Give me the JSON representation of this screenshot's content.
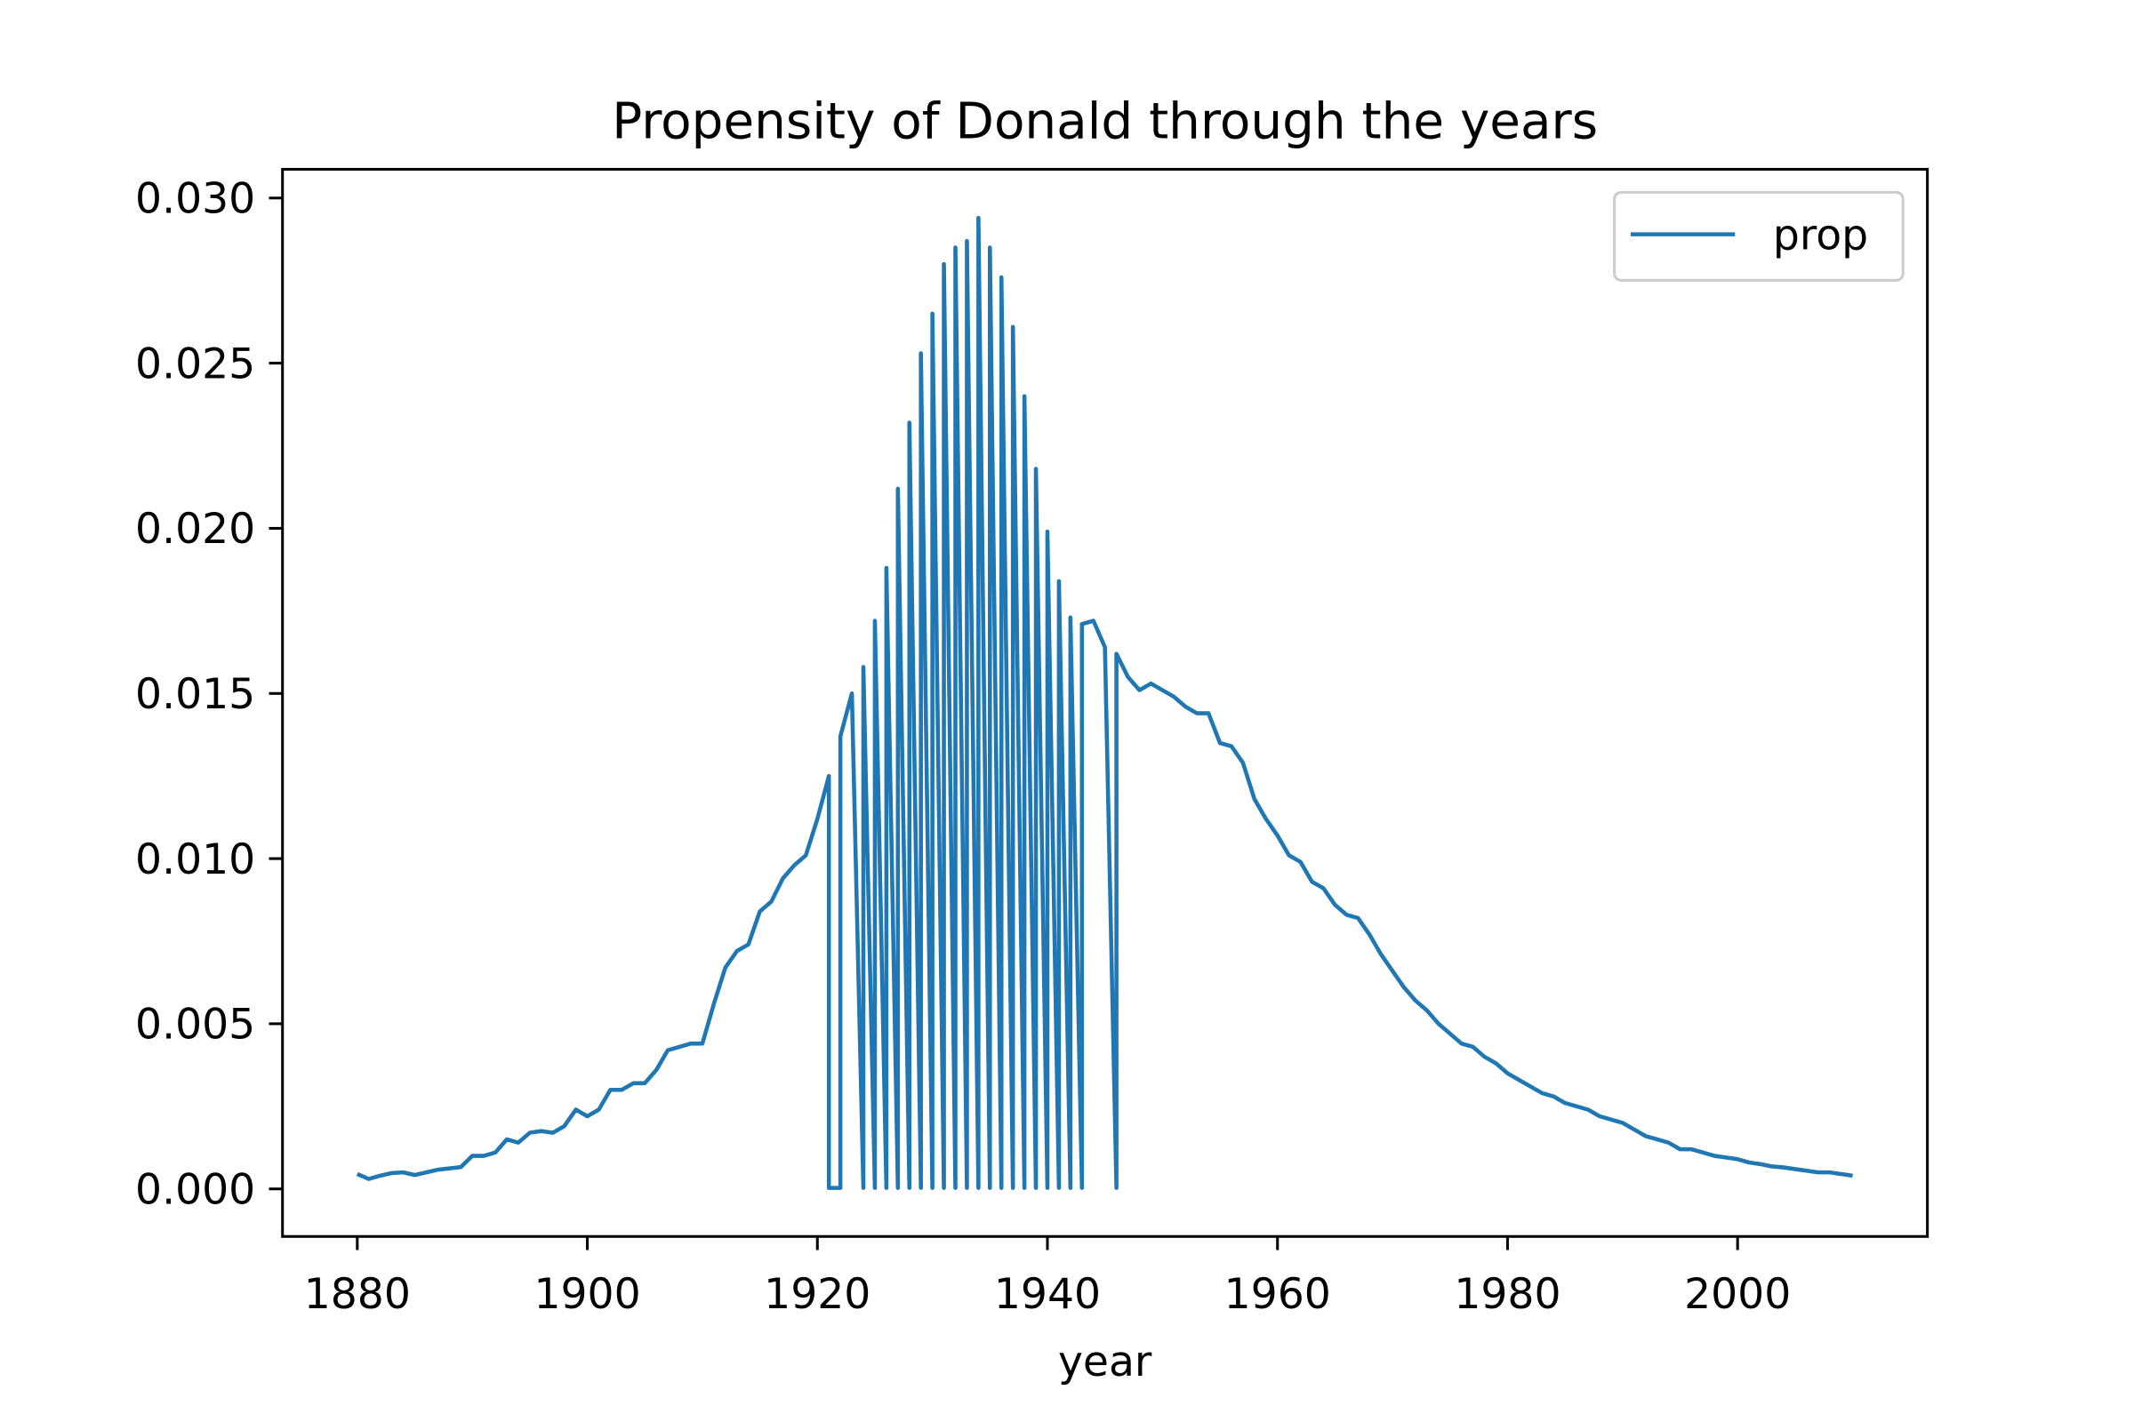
{
  "chart_data": {
    "type": "line",
    "title": "Propensity of Donald through the years",
    "xlabel": "year",
    "x": [
      1880,
      1881,
      1882,
      1883,
      1884,
      1885,
      1886,
      1887,
      1888,
      1889,
      1890,
      1891,
      1892,
      1893,
      1894,
      1895,
      1896,
      1897,
      1898,
      1899,
      1900,
      1901,
      1902,
      1903,
      1904,
      1905,
      1906,
      1907,
      1908,
      1909,
      1910,
      1911,
      1912,
      1913,
      1914,
      1915,
      1916,
      1917,
      1918,
      1919,
      1920,
      1921,
      1921,
      1922,
      1922,
      1923,
      1924,
      1924,
      1925,
      1925,
      1926,
      1926,
      1927,
      1927,
      1928,
      1928,
      1929,
      1929,
      1930,
      1930,
      1931,
      1931,
      1932,
      1932,
      1933,
      1933,
      1934,
      1934,
      1935,
      1935,
      1936,
      1936,
      1937,
      1937,
      1938,
      1938,
      1939,
      1939,
      1940,
      1940,
      1941,
      1941,
      1942,
      1942,
      1943,
      1943,
      1944,
      1945,
      1946,
      1946,
      1947,
      1948,
      1949,
      1950,
      1951,
      1952,
      1953,
      1954,
      1955,
      1956,
      1957,
      1958,
      1959,
      1960,
      1961,
      1962,
      1963,
      1964,
      1965,
      1966,
      1967,
      1968,
      1969,
      1970,
      1971,
      1972,
      1973,
      1974,
      1975,
      1976,
      1977,
      1978,
      1979,
      1980,
      1981,
      1982,
      1983,
      1984,
      1985,
      1986,
      1987,
      1988,
      1989,
      1990,
      1991,
      1992,
      1993,
      1994,
      1995,
      1996,
      1997,
      1998,
      1999,
      2000,
      2001,
      2002,
      2003,
      2004,
      2005,
      2006,
      2007,
      2008,
      2009,
      2010
    ],
    "series": [
      {
        "name": "prop",
        "color": "#1f77b4",
        "values": [
          0.00045,
          0.0003,
          0.0004,
          0.00048,
          0.0005,
          0.00042,
          0.0005,
          0.00058,
          0.00062,
          0.00066,
          0.001,
          0.001,
          0.0011,
          0.0015,
          0.0014,
          0.0017,
          0.00175,
          0.0017,
          0.0019,
          0.0024,
          0.0022,
          0.0024,
          0.003,
          0.003,
          0.0032,
          0.0032,
          0.0036,
          0.0042,
          0.0043,
          0.0044,
          0.0044,
          0.0056,
          0.0067,
          0.0072,
          0.0074,
          0.0084,
          0.0087,
          0.0094,
          0.0098,
          0.0101,
          0.0112,
          0.0125,
          3e-05,
          3e-05,
          0.0137,
          0.015,
          3e-05,
          0.0158,
          3e-05,
          0.0172,
          3e-05,
          0.0188,
          3e-05,
          0.0212,
          3e-05,
          0.0232,
          3e-05,
          0.0253,
          3e-05,
          0.0265,
          3e-05,
          0.028,
          3e-05,
          0.0285,
          3e-05,
          0.0287,
          3e-05,
          0.0294,
          3e-05,
          0.0285,
          3e-05,
          0.0276,
          3e-05,
          0.0261,
          3e-05,
          0.024,
          3e-05,
          0.0218,
          3e-05,
          0.0199,
          3e-05,
          0.0184,
          3e-05,
          0.0173,
          3e-05,
          0.0171,
          0.0172,
          0.0164,
          3e-05,
          0.0162,
          0.0155,
          0.0151,
          0.0153,
          0.0151,
          0.0149,
          0.0146,
          0.0144,
          0.0144,
          0.0135,
          0.0134,
          0.0129,
          0.0118,
          0.0112,
          0.0107,
          0.0101,
          0.0099,
          0.0093,
          0.0091,
          0.0086,
          0.0083,
          0.0082,
          0.0077,
          0.0071,
          0.0066,
          0.0061,
          0.0057,
          0.0054,
          0.005,
          0.0047,
          0.0044,
          0.0043,
          0.004,
          0.0038,
          0.0035,
          0.0033,
          0.0031,
          0.0029,
          0.0028,
          0.0026,
          0.0025,
          0.0024,
          0.0022,
          0.0021,
          0.002,
          0.0018,
          0.0016,
          0.0015,
          0.0014,
          0.0012,
          0.0012,
          0.0011,
          0.001,
          0.00095,
          0.0009,
          0.0008,
          0.00075,
          0.00068,
          0.00065,
          0.0006,
          0.00055,
          0.0005,
          0.0005,
          0.00045,
          0.0004
        ]
      }
    ],
    "xlim": [
      1873.5,
      2016.5
    ],
    "xticks": [
      1880,
      1900,
      1920,
      1940,
      1960,
      1980,
      2000
    ],
    "ylim": [
      -0.00144,
      0.03087
    ],
    "yticks": [
      {
        "value": 0,
        "label": "0.000"
      },
      {
        "value": 0.005,
        "label": "0.005"
      },
      {
        "value": 0.01,
        "label": "0.010"
      },
      {
        "value": 0.015,
        "label": "0.015"
      },
      {
        "value": 0.02,
        "label": "0.020"
      },
      {
        "value": 0.025,
        "label": "0.025"
      },
      {
        "value": 0.03,
        "label": "0.030"
      }
    ],
    "legend": "upper right",
    "grid": false
  }
}
